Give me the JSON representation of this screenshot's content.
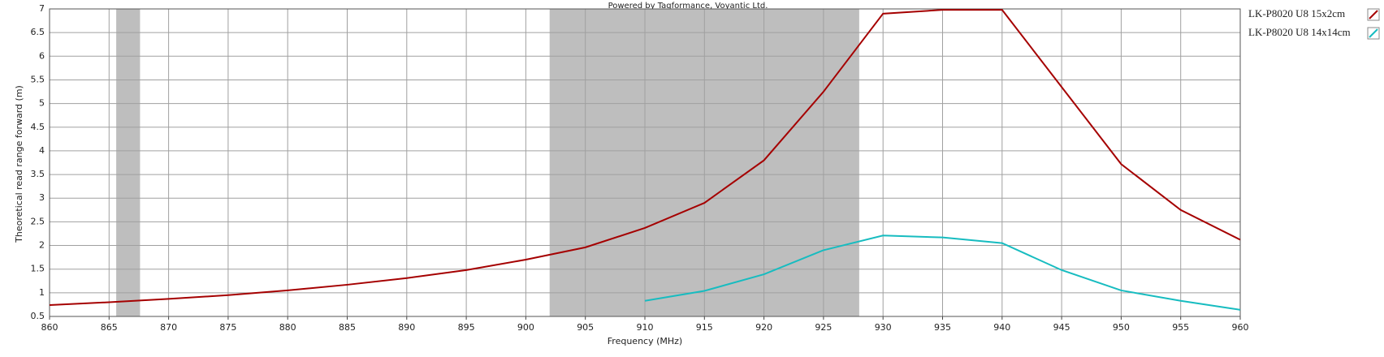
{
  "chart_data": {
    "type": "line",
    "title": "Powered by Tagformance, Voyantic Ltd.",
    "x_label": "Frequency (MHz)",
    "y_label": "Theoretical read range forward (m)",
    "x": [
      860,
      865,
      870,
      875,
      880,
      885,
      890,
      895,
      900,
      905,
      910,
      915,
      920,
      925,
      930,
      935,
      940,
      945,
      950,
      955,
      960
    ],
    "series": [
      {
        "name": "LK-P8020 U8 15x2cm",
        "color": "#a50000",
        "values": [
          0.74,
          0.8,
          0.87,
          0.95,
          1.05,
          1.17,
          1.31,
          1.48,
          1.7,
          1.96,
          2.37,
          2.9,
          3.8,
          5.25,
          6.9,
          6.98,
          6.98,
          5.35,
          3.72,
          2.75,
          2.12
        ]
      },
      {
        "name": "LK-P8020 U8 14x14cm",
        "color": "#17bcc0",
        "values": [
          null,
          null,
          null,
          null,
          null,
          null,
          null,
          null,
          null,
          null,
          0.83,
          1.04,
          1.39,
          1.9,
          2.21,
          2.17,
          2.05,
          1.48,
          1.05,
          0.83,
          0.64
        ]
      }
    ],
    "bands": [
      [
        865.6,
        867.6
      ],
      [
        902,
        928
      ]
    ],
    "band_color": "#bebebe",
    "xlim": [
      860,
      960
    ],
    "xticks": [
      860,
      865,
      870,
      875,
      880,
      885,
      890,
      895,
      900,
      905,
      910,
      915,
      920,
      925,
      930,
      935,
      940,
      945,
      950,
      955,
      960
    ],
    "ylim": [
      0.5,
      7
    ],
    "yticks": [
      0.5,
      1,
      1.5,
      2,
      2.5,
      3,
      3.5,
      4,
      4.5,
      5,
      5.5,
      6,
      6.5,
      7
    ],
    "grid": true,
    "legend": "outside-right"
  }
}
